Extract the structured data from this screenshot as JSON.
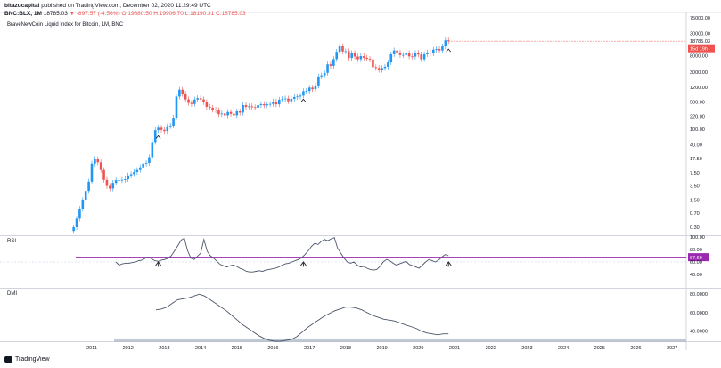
{
  "header": {
    "author": "bitazucapital",
    "published_text": "published on TradingView.com, December 02, 2020 11:29:49 UTC",
    "symbol": "BNC:BLX, 1M",
    "last": "18785.03",
    "change": "▼ -897.57 (-4.56%)",
    "open": "O:19680.50",
    "high": "H:19906.70",
    "low": "L:18190.31",
    "close": "C:18785.03",
    "chart_title": "BraveNewCoin Liquid Index for Bitcoin, 1M, BNC"
  },
  "panes": {
    "rsi_label": "RSI",
    "dmi_label": "DMI"
  },
  "footer": {
    "brand": "TradingView"
  },
  "colors": {
    "up": "#2196f3",
    "down": "#ef5350",
    "rsi_line": "#4a5568",
    "rsi_level": "#9c27b0",
    "dmi_fill": "#b2bccb",
    "price_tag": "#ef5350"
  },
  "chart_data": [
    {
      "type": "candlestick",
      "scale": "log",
      "price_labels": [
        "75000.00",
        "30000.00",
        "18785.03",
        "15d 19h",
        "8000.00",
        "3000.00",
        "1200.00",
        "500.00",
        "220.00",
        "100.00",
        "40.00",
        "17.50",
        "7.50",
        "3.50",
        "1.50",
        "0.70",
        "0.30"
      ],
      "price_label_values": [
        75000,
        30000,
        18785,
        null,
        8000,
        3000,
        1200,
        500,
        220,
        100,
        40,
        17.5,
        7.5,
        3.5,
        1.5,
        0.7,
        0.3
      ],
      "last_price": 18785.03,
      "countdown": "15d 19h",
      "x_labels": [
        "2011",
        "2012",
        "2013",
        "2014",
        "2015",
        "2016",
        "2017",
        "2018",
        "2019",
        "2020",
        "2021",
        "2022",
        "2023",
        "2024",
        "2025",
        "2026",
        "2027"
      ],
      "monthly_close": [
        0.3,
        0.5,
        0.9,
        1.5,
        2.6,
        4.5,
        13,
        17,
        14,
        9,
        5,
        3.5,
        3,
        4.2,
        4.9,
        4.9,
        5,
        5.2,
        6.5,
        7,
        8,
        9,
        10.5,
        13,
        13.5,
        19,
        47,
        95,
        110,
        97,
        90,
        120,
        125,
        200,
        700,
        1050,
        820,
        590,
        480,
        450,
        585,
        635,
        590,
        500,
        380,
        360,
        320,
        310,
        245,
        255,
        230,
        280,
        250,
        230,
        290,
        270,
        420,
        375,
        390,
        370,
        360,
        420,
        445,
        415,
        440,
        450,
        520,
        440,
        580,
        600,
        620,
        530,
        610,
        680,
        700,
        740,
        960,
        970,
        1190,
        1080,
        1350,
        2300,
        2460,
        2850,
        4740,
        4340,
        6440,
        9950,
        13800,
        10200,
        10300,
        6900,
        9200,
        7500,
        6400,
        7700,
        7000,
        6600,
        6300,
        4000,
        3800,
        3400,
        3800,
        4100,
        5300,
        8600,
        10800,
        9600,
        8200,
        8300,
        9200,
        7600,
        7500,
        9300,
        8500,
        6400,
        8600,
        9500,
        9100,
        11300,
        11700,
        10800,
        13800,
        19700,
        18785
      ],
      "annotations": [
        {
          "type": "arrow-up",
          "date": "2012-11"
        },
        {
          "type": "arrow-up",
          "date": "2016-11"
        },
        {
          "type": "arrow-up",
          "date": "2020-11"
        }
      ]
    },
    {
      "type": "line",
      "name": "RSI",
      "y_labels": [
        "100.00",
        "80.00",
        "67.69",
        "60.00",
        "40.00"
      ],
      "y_label_values": [
        100,
        80,
        67.69,
        60,
        40
      ],
      "level": 67.69,
      "ylim": [
        20,
        100
      ],
      "values": [
        60,
        55,
        57,
        58,
        58,
        59,
        60,
        62,
        63,
        66,
        68,
        65,
        62,
        61,
        63,
        64,
        66,
        70,
        78,
        86,
        95,
        98,
        78,
        66,
        64,
        69,
        74,
        96,
        77,
        70,
        66,
        61,
        56,
        54,
        52,
        54,
        55,
        53,
        50,
        48,
        45,
        44,
        44,
        45,
        46,
        45,
        47,
        48,
        49,
        50,
        52,
        55,
        57,
        58,
        60,
        62,
        64,
        67,
        72,
        78,
        85,
        90,
        88,
        93,
        96,
        94,
        97,
        99,
        82,
        74,
        66,
        60,
        58,
        60,
        55,
        52,
        53,
        50,
        48,
        47,
        48,
        53,
        60,
        64,
        62,
        58,
        55,
        57,
        59,
        61,
        56,
        54,
        52,
        50,
        55,
        60,
        64,
        62,
        60,
        63,
        68,
        72,
        70
      ]
    },
    {
      "type": "area",
      "name": "DMI",
      "y_labels": [
        "80.0000",
        "60.0000",
        "40.0000"
      ],
      "y_label_values": [
        80,
        60,
        40
      ],
      "ylim": [
        30,
        85
      ],
      "adx": [
        63,
        64,
        66,
        70,
        74,
        75,
        76,
        78,
        80,
        78,
        74,
        70,
        66,
        62,
        57,
        52,
        47,
        43,
        39,
        35,
        32,
        30,
        29,
        29,
        30,
        31,
        34,
        39,
        44,
        48,
        52,
        56,
        59,
        62,
        64,
        66,
        66,
        65,
        63,
        60,
        57,
        55,
        53,
        52,
        51,
        49,
        47,
        45,
        43,
        40,
        38,
        37,
        36,
        37,
        37
      ],
      "baseline": 32
    }
  ]
}
